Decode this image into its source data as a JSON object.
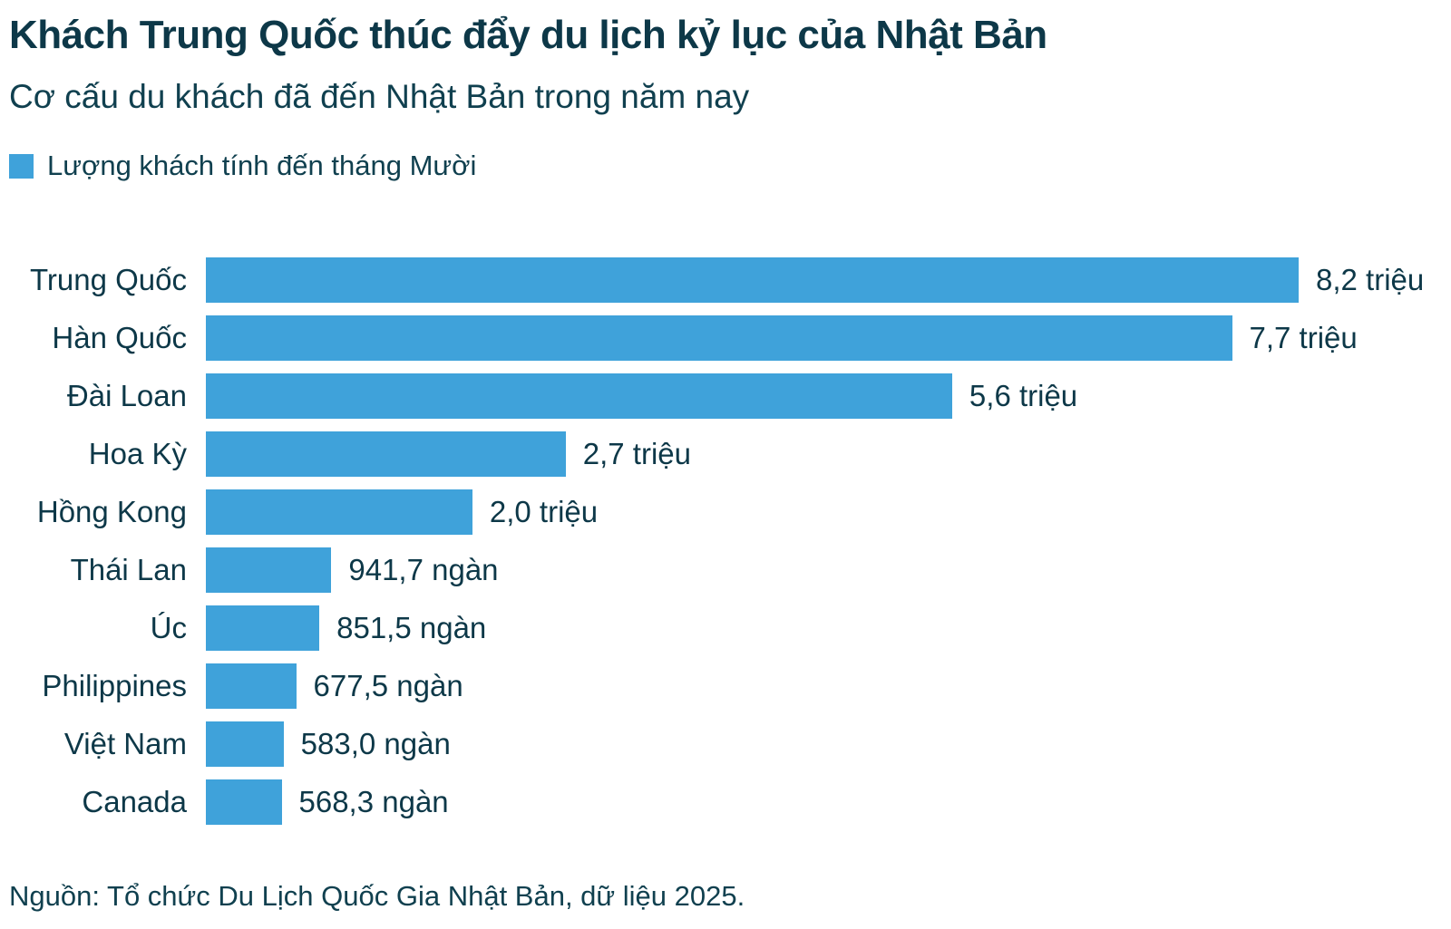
{
  "header": {
    "title": "Khách Trung Quốc thúc đẩy du lịch kỷ lục của Nhật Bản",
    "subtitle": "Cơ cấu du khách đã đến Nhật Bản trong năm nay"
  },
  "legend": {
    "label": "Lượng khách tính đến tháng Mười"
  },
  "source": "Nguồn: Tổ chức Du Lịch Quốc Gia Nhật Bản, dữ liệu 2025.",
  "colors": {
    "bar": "#3fa2da",
    "text": "#0d3848",
    "background": "#ffffff"
  },
  "chart_data": {
    "type": "bar",
    "orientation": "horizontal",
    "title": "Khách Trung Quốc thúc đẩy du lịch kỷ lục của Nhật Bản",
    "subtitle": "Cơ cấu du khách đã đến Nhật Bản trong năm nay",
    "legend_entries": [
      "Lượng khách tính đến tháng Mười"
    ],
    "legend_position": "top-left",
    "grid": false,
    "unit": "millions of visitors",
    "xlim": [
      0,
      8.2
    ],
    "categories": [
      "Trung Quốc",
      "Hàn Quốc",
      "Đài Loan",
      "Hoa Kỳ",
      "Hồng Kong",
      "Thái Lan",
      "Úc",
      "Philippines",
      "Việt Nam",
      "Canada"
    ],
    "values": [
      8.2,
      7.7,
      5.6,
      2.7,
      2.0,
      0.9417,
      0.8515,
      0.6775,
      0.583,
      0.5683
    ],
    "value_labels": [
      "8,2 triệu",
      "7,7 triệu",
      "5,6 triệu",
      "2,7 triệu",
      "2,0 triệu",
      "941,7 ngàn",
      "851,5 ngàn",
      "677,5 ngàn",
      "583,0 ngàn",
      "568,3 ngàn"
    ]
  }
}
